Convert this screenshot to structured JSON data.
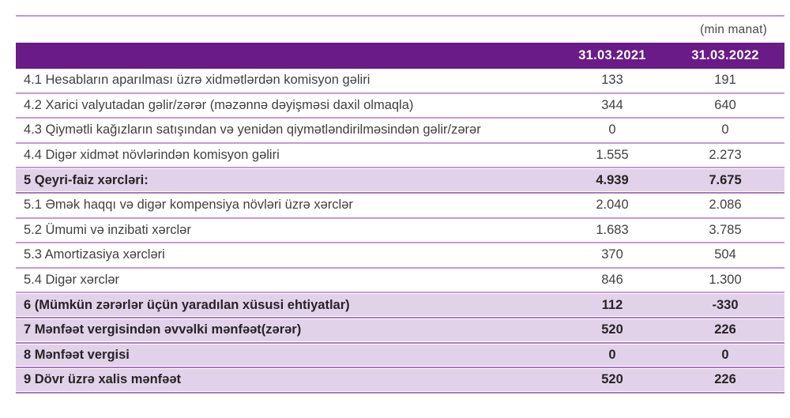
{
  "colors": {
    "header_bg": "#6A1B87",
    "header_text": "#ffffff",
    "shaded_row_bg": "#E2D2E9",
    "separator": "#C39BD3",
    "separator_strong": "#A87BBC",
    "text": "#414042"
  },
  "table": {
    "unit_note": "(min manat)",
    "columns": [
      "31.03.2021",
      "31.03.2022"
    ],
    "rows": [
      {
        "label": "4.1 Hesabların aparılması üzrə xidmətlərdən komisyon gəliri",
        "values": [
          "133",
          "191"
        ],
        "emphasis": false
      },
      {
        "label": "4.2 Xarici valyutadan gəlir/zərər (məzənnə dəyişməsi daxil olmaqla)",
        "values": [
          "344",
          "640"
        ],
        "emphasis": false
      },
      {
        "label": "4.3 Qiymətli kağızların satışından və yenidən qiymətləndirilməsindən gəlir/zərər",
        "values": [
          "0",
          "0"
        ],
        "emphasis": false
      },
      {
        "label": "4.4 Digər xidmət növlərindən komisyon gəliri",
        "values": [
          "1.555",
          "2.273"
        ],
        "emphasis": false
      },
      {
        "label": "5 Qeyri-faiz xərcləri:",
        "values": [
          "4.939",
          "7.675"
        ],
        "emphasis": true
      },
      {
        "label": "5.1 Əmək haqqı və digər kompensiya növləri üzrə xərclər",
        "values": [
          "2.040",
          "2.086"
        ],
        "emphasis": false
      },
      {
        "label": "5.2 Ümumi və inzibati xərclər",
        "values": [
          "1.683",
          "3.785"
        ],
        "emphasis": false
      },
      {
        "label": "5.3 Amortizasiya xərcləri",
        "values": [
          "370",
          "504"
        ],
        "emphasis": false
      },
      {
        "label": "5.4 Digər xərclər",
        "values": [
          "846",
          "1.300"
        ],
        "emphasis": false
      },
      {
        "label": "6 (Mümkün zərərlər üçün yaradılan xüsusi ehtiyatlar)",
        "values": [
          "112",
          "-330"
        ],
        "emphasis": true
      },
      {
        "label": "7 Mənfəət vergisindən əvvəlki mənfəət(zərər)",
        "values": [
          "520",
          "226"
        ],
        "emphasis": true
      },
      {
        "label": "8 Mənfəət vergisi",
        "values": [
          "0",
          "0"
        ],
        "emphasis": true
      },
      {
        "label": "9 Dövr üzrə xalis mənfəət",
        "values": [
          "520",
          "226"
        ],
        "emphasis": true
      }
    ]
  }
}
